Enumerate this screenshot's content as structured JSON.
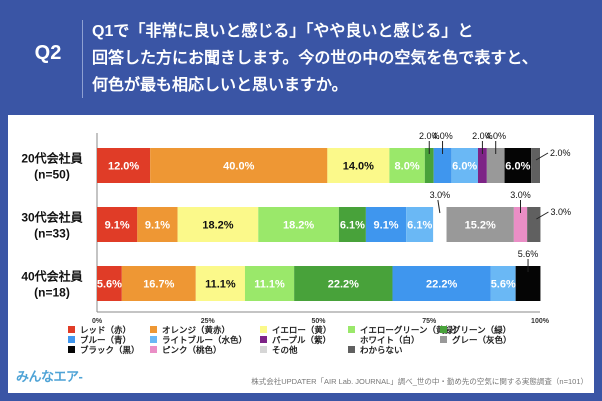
{
  "header": {
    "qnum": "Q2",
    "question_lines": [
      "Q1で「非常に良いと感じる」「やや良いと感じる」と",
      "回答した方にお聞きします。今の世の中の空気を色で表すと、",
      "何色が最も相応しいと思いますか。"
    ]
  },
  "footer": {
    "logo": "みんなエア-",
    "source": "株式会社UPDATER「AIR Lab. JOURNAL」調べ_世の中・勤め先の空気に関する実態調査（n=101）"
  },
  "chart_data": {
    "type": "bar",
    "orientation": "horizontal",
    "stacked": true,
    "title": "",
    "xlabel": "",
    "ylabel": "",
    "xlim": [
      0,
      100
    ],
    "x_ticks": [
      "0%",
      "25%",
      "50%",
      "75%",
      "100%"
    ],
    "categories": [
      {
        "line1": "20代会社員",
        "line2": "(n=50)"
      },
      {
        "line1": "30代会社員",
        "line2": "(n=33)"
      },
      {
        "line1": "40代会社員",
        "line2": "(n=18)"
      }
    ],
    "legend_position": "bottom",
    "series": [
      {
        "name": "レッド（赤）",
        "color": "#e03c27",
        "label_color": "#ffffff",
        "values": [
          12.0,
          9.1,
          5.6
        ]
      },
      {
        "name": "オレンジ（黄赤）",
        "color": "#ee9734",
        "label_color": "#ffffff",
        "values": [
          40.0,
          9.1,
          16.7
        ]
      },
      {
        "name": "イエロー（黄）",
        "color": "#fbf98a",
        "label_color": "#111111",
        "values": [
          14.0,
          18.2,
          11.1
        ]
      },
      {
        "name": "イエローグリーン（黄緑）",
        "color": "#9ae86a",
        "label_color": "#ffffff",
        "values": [
          8.0,
          18.2,
          11.1
        ]
      },
      {
        "name": "グリーン（緑）",
        "color": "#48a23a",
        "label_color": "#ffffff",
        "values": [
          2.0,
          6.1,
          22.2
        ]
      },
      {
        "name": "ブルー（青）",
        "color": "#3f96ee",
        "label_color": "#ffffff",
        "values": [
          4.0,
          9.1,
          22.2
        ]
      },
      {
        "name": "ライトブルー（水色）",
        "color": "#6ab8f5",
        "label_color": "#ffffff",
        "values": [
          6.0,
          6.1,
          5.6
        ]
      },
      {
        "name": "パープル（紫）",
        "color": "#7d2386",
        "label_color": "#ffffff",
        "values": [
          2.0,
          0,
          0
        ]
      },
      {
        "name": "ホワイト（白）",
        "color": "#ffffff",
        "label_color": "#111111",
        "values": [
          0,
          3.0,
          0
        ]
      },
      {
        "name": "グレー（灰色）",
        "color": "#999999",
        "label_color": "#ffffff",
        "values": [
          4.0,
          15.2,
          0
        ]
      },
      {
        "name": "ブラック（黒）",
        "color": "#050505",
        "label_color": "#ffffff",
        "values": [
          6.0,
          0,
          5.6
        ]
      },
      {
        "name": "ピンク（桃色）",
        "color": "#ea8ec6",
        "label_color": "#ffffff",
        "values": [
          0,
          3.0,
          0
        ]
      },
      {
        "name": "その他",
        "color": "#d6d6d6",
        "label_color": "#111111",
        "values": [
          0,
          0,
          0
        ]
      },
      {
        "name": "わからない",
        "color": "#606060",
        "label_color": "#ffffff",
        "values": [
          2.0,
          3.0,
          0
        ]
      }
    ],
    "data_labels": [
      [
        "12.0%",
        "40.0%",
        "14.0%",
        "8.0%",
        "2.0%",
        "4.0%",
        "6.0%",
        "2.0%",
        "",
        "4.0%",
        "6.0%",
        "",
        "",
        "2.0%"
      ],
      [
        "9.1%",
        "9.1%",
        "18.2%",
        "18.2%",
        "6.1%",
        "9.1%",
        "6.1%",
        "",
        "3.0%",
        "15.2%",
        "",
        "3.0%",
        "",
        "3.0%"
      ],
      [
        "5.6%",
        "16.7%",
        "11.1%",
        "11.1%",
        "22.2%",
        "22.2%",
        "5.6%",
        "",
        "",
        "",
        "5.6%",
        "",
        "",
        ""
      ]
    ],
    "outside_labels": [
      [
        4,
        5,
        7,
        9,
        13
      ],
      [
        8,
        11,
        13
      ],
      [
        10
      ]
    ]
  }
}
